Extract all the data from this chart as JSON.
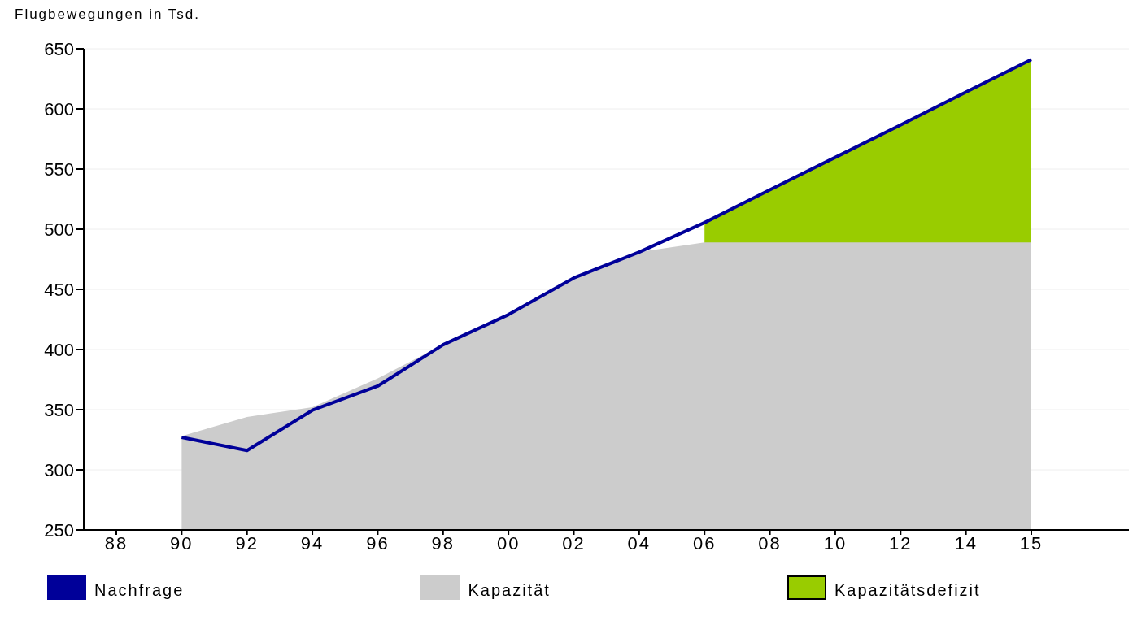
{
  "chart_data": {
    "type": "area",
    "ylabel": "Flugbewegungen in Tsd.",
    "categories": [
      "88",
      "90",
      "92",
      "94",
      "96",
      "98",
      "00",
      "02",
      "04",
      "06",
      "08",
      "10",
      "12",
      "14",
      "15"
    ],
    "ylim": [
      250,
      650
    ],
    "yticks": [
      250,
      300,
      350,
      400,
      450,
      500,
      550,
      600,
      650
    ],
    "grid": "y",
    "legend": "bottom",
    "series": [
      {
        "name": "Nachfrage",
        "type": "line",
        "color": "#000099",
        "values": [
          null,
          327,
          316,
          349.5,
          369.6,
          404,
          429,
          459.5,
          481,
          505.5,
          532.8,
          559.7,
          586.7,
          614,
          641
        ]
      },
      {
        "name": "Kapazität",
        "color": "#cccccc",
        "values": [
          null,
          328,
          344,
          352,
          376,
          404,
          429,
          459.5,
          481,
          489,
          489,
          489,
          489,
          489,
          489
        ]
      },
      {
        "name": "Kapazitätsdefizit",
        "color": "#99cc00",
        "values": [
          null,
          null,
          null,
          null,
          null,
          null,
          null,
          null,
          null,
          505.5,
          532.8,
          559.7,
          586.7,
          614,
          641
        ]
      }
    ]
  }
}
